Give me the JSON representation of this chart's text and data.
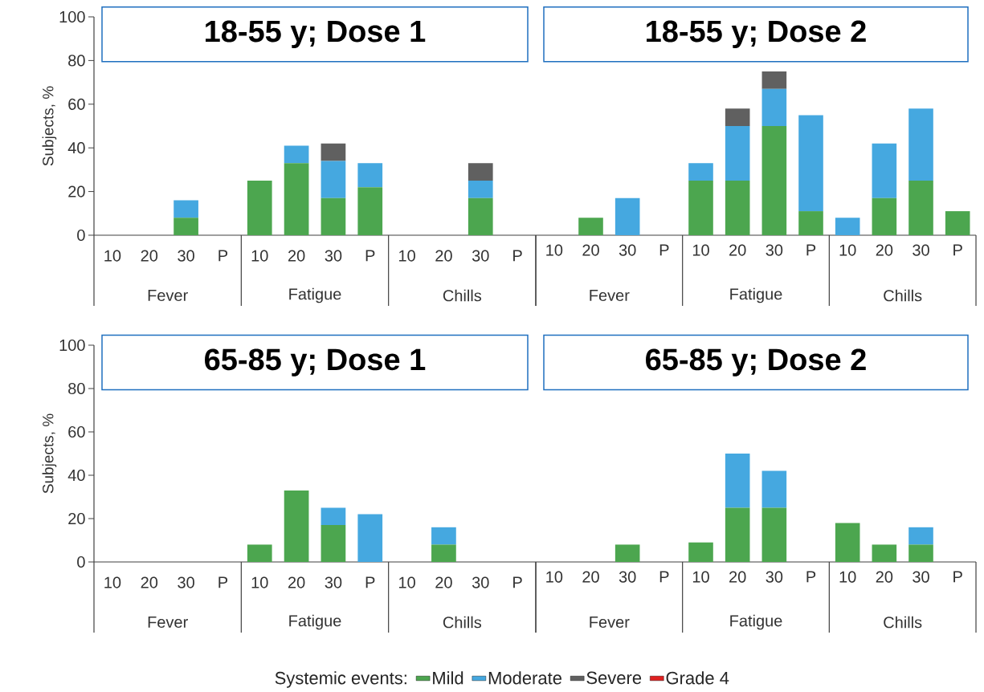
{
  "chart_data": [
    {
      "type": "bar",
      "title": "18-55 y; Dose 1",
      "ylabel": "Subjects, %",
      "stacked": true,
      "categories": [
        "10",
        "20",
        "30",
        "P",
        "10",
        "20",
        "30",
        "P",
        "10",
        "20",
        "30",
        "P"
      ],
      "ylim": [
        0,
        100
      ],
      "yticks": [
        0,
        20,
        40,
        60,
        80,
        100
      ],
      "legend": false,
      "tick_labels": true,
      "annotations": [
        "Fever",
        "Fatigue",
        "Chills"
      ],
      "series": [
        {
          "color": "#4ca64f",
          "values": [
            0,
            0,
            8,
            0,
            25,
            33,
            17,
            22,
            0,
            0,
            17,
            0
          ]
        },
        {
          "color": "#45a8e0",
          "values": [
            0,
            0,
            8,
            0,
            0,
            8,
            17,
            11,
            0,
            0,
            8,
            0
          ]
        },
        {
          "color": "#606060",
          "values": [
            0,
            0,
            0,
            0,
            0,
            0,
            8,
            0,
            0,
            0,
            8,
            0
          ]
        },
        {
          "color": "#e02020",
          "values": [
            0,
            0,
            0,
            0,
            0,
            0,
            0,
            0,
            0,
            0,
            0,
            0
          ]
        }
      ]
    },
    {
      "type": "bar",
      "title": "18-55 y; Dose 2",
      "stacked": true,
      "categories": [
        "10",
        "20",
        "30",
        "P",
        "10",
        "20",
        "30",
        "P",
        "10",
        "20",
        "30",
        "P"
      ],
      "ylim": [
        0,
        100
      ],
      "yticks": [
        0,
        20,
        40,
        60,
        80,
        100
      ],
      "legend": false,
      "tick_labels": "x",
      "annotations": [
        "Fever",
        "Fatigue",
        "Chills"
      ],
      "series": [
        {
          "color": "#4ca64f",
          "values": [
            0,
            8,
            0,
            0,
            25,
            25,
            50,
            11,
            0,
            17,
            25,
            11
          ]
        },
        {
          "color": "#45a8e0",
          "values": [
            0,
            0,
            17,
            0,
            8,
            25,
            17,
            44,
            8,
            25,
            33,
            0
          ]
        },
        {
          "color": "#606060",
          "values": [
            0,
            0,
            0,
            0,
            0,
            8,
            8,
            0,
            0,
            0,
            0,
            0
          ]
        },
        {
          "color": "#e02020",
          "values": [
            0,
            0,
            0,
            0,
            0,
            0,
            0,
            0,
            0,
            0,
            0,
            0
          ]
        }
      ]
    },
    {
      "type": "bar",
      "title": "65-85 y; Dose 1",
      "ylabel": "Subjects, %",
      "stacked": true,
      "categories": [
        "10",
        "20",
        "30",
        "P",
        "10",
        "20",
        "30",
        "P",
        "10",
        "20",
        "30",
        "P"
      ],
      "ylim": [
        0,
        100
      ],
      "yticks": [
        0,
        20,
        40,
        60,
        80,
        100
      ],
      "legend": false,
      "tick_labels": true,
      "annotations": [
        "Fever",
        "Fatigue",
        "Chills"
      ],
      "series": [
        {
          "color": "#4ca64f",
          "values": [
            0,
            0,
            0,
            0,
            8,
            33,
            17,
            0,
            0,
            8,
            0,
            0
          ]
        },
        {
          "color": "#45a8e0",
          "values": [
            0,
            0,
            0,
            0,
            0,
            0,
            8,
            22,
            0,
            8,
            0,
            0
          ]
        },
        {
          "color": "#606060",
          "values": [
            0,
            0,
            0,
            0,
            0,
            0,
            0,
            0,
            0,
            0,
            0,
            0
          ]
        },
        {
          "color": "#e02020",
          "values": [
            0,
            0,
            0,
            0,
            0,
            0,
            0,
            0,
            0,
            0,
            0,
            0
          ]
        }
      ]
    },
    {
      "type": "bar",
      "title": "65-85 y; Dose 2",
      "stacked": true,
      "categories": [
        "10",
        "20",
        "30",
        "P",
        "10",
        "20",
        "30",
        "P",
        "10",
        "20",
        "30",
        "P"
      ],
      "ylim": [
        0,
        100
      ],
      "yticks": [
        0,
        20,
        40,
        60,
        80,
        100
      ],
      "legend": "bottom",
      "legend_title": "Systemic events:",
      "tick_labels": "x",
      "annotations": [
        "Fever",
        "Fatigue",
        "Chills"
      ],
      "series": [
        {
          "name": "Mild",
          "color": "#4ca64f",
          "values": [
            0,
            0,
            8,
            0,
            9,
            25,
            25,
            0,
            18,
            8,
            8,
            0
          ]
        },
        {
          "name": "Moderate",
          "color": "#45a8e0",
          "values": [
            0,
            0,
            0,
            0,
            0,
            25,
            17,
            0,
            0,
            0,
            8,
            0
          ]
        },
        {
          "name": "Severe",
          "color": "#606060",
          "values": [
            0,
            0,
            0,
            0,
            0,
            0,
            0,
            0,
            0,
            0,
            0,
            0
          ]
        },
        {
          "name": "Grade 4",
          "color": "#e02020",
          "values": [
            0,
            0,
            0,
            0,
            0,
            0,
            0,
            0,
            0,
            0,
            0,
            0
          ]
        }
      ]
    }
  ]
}
